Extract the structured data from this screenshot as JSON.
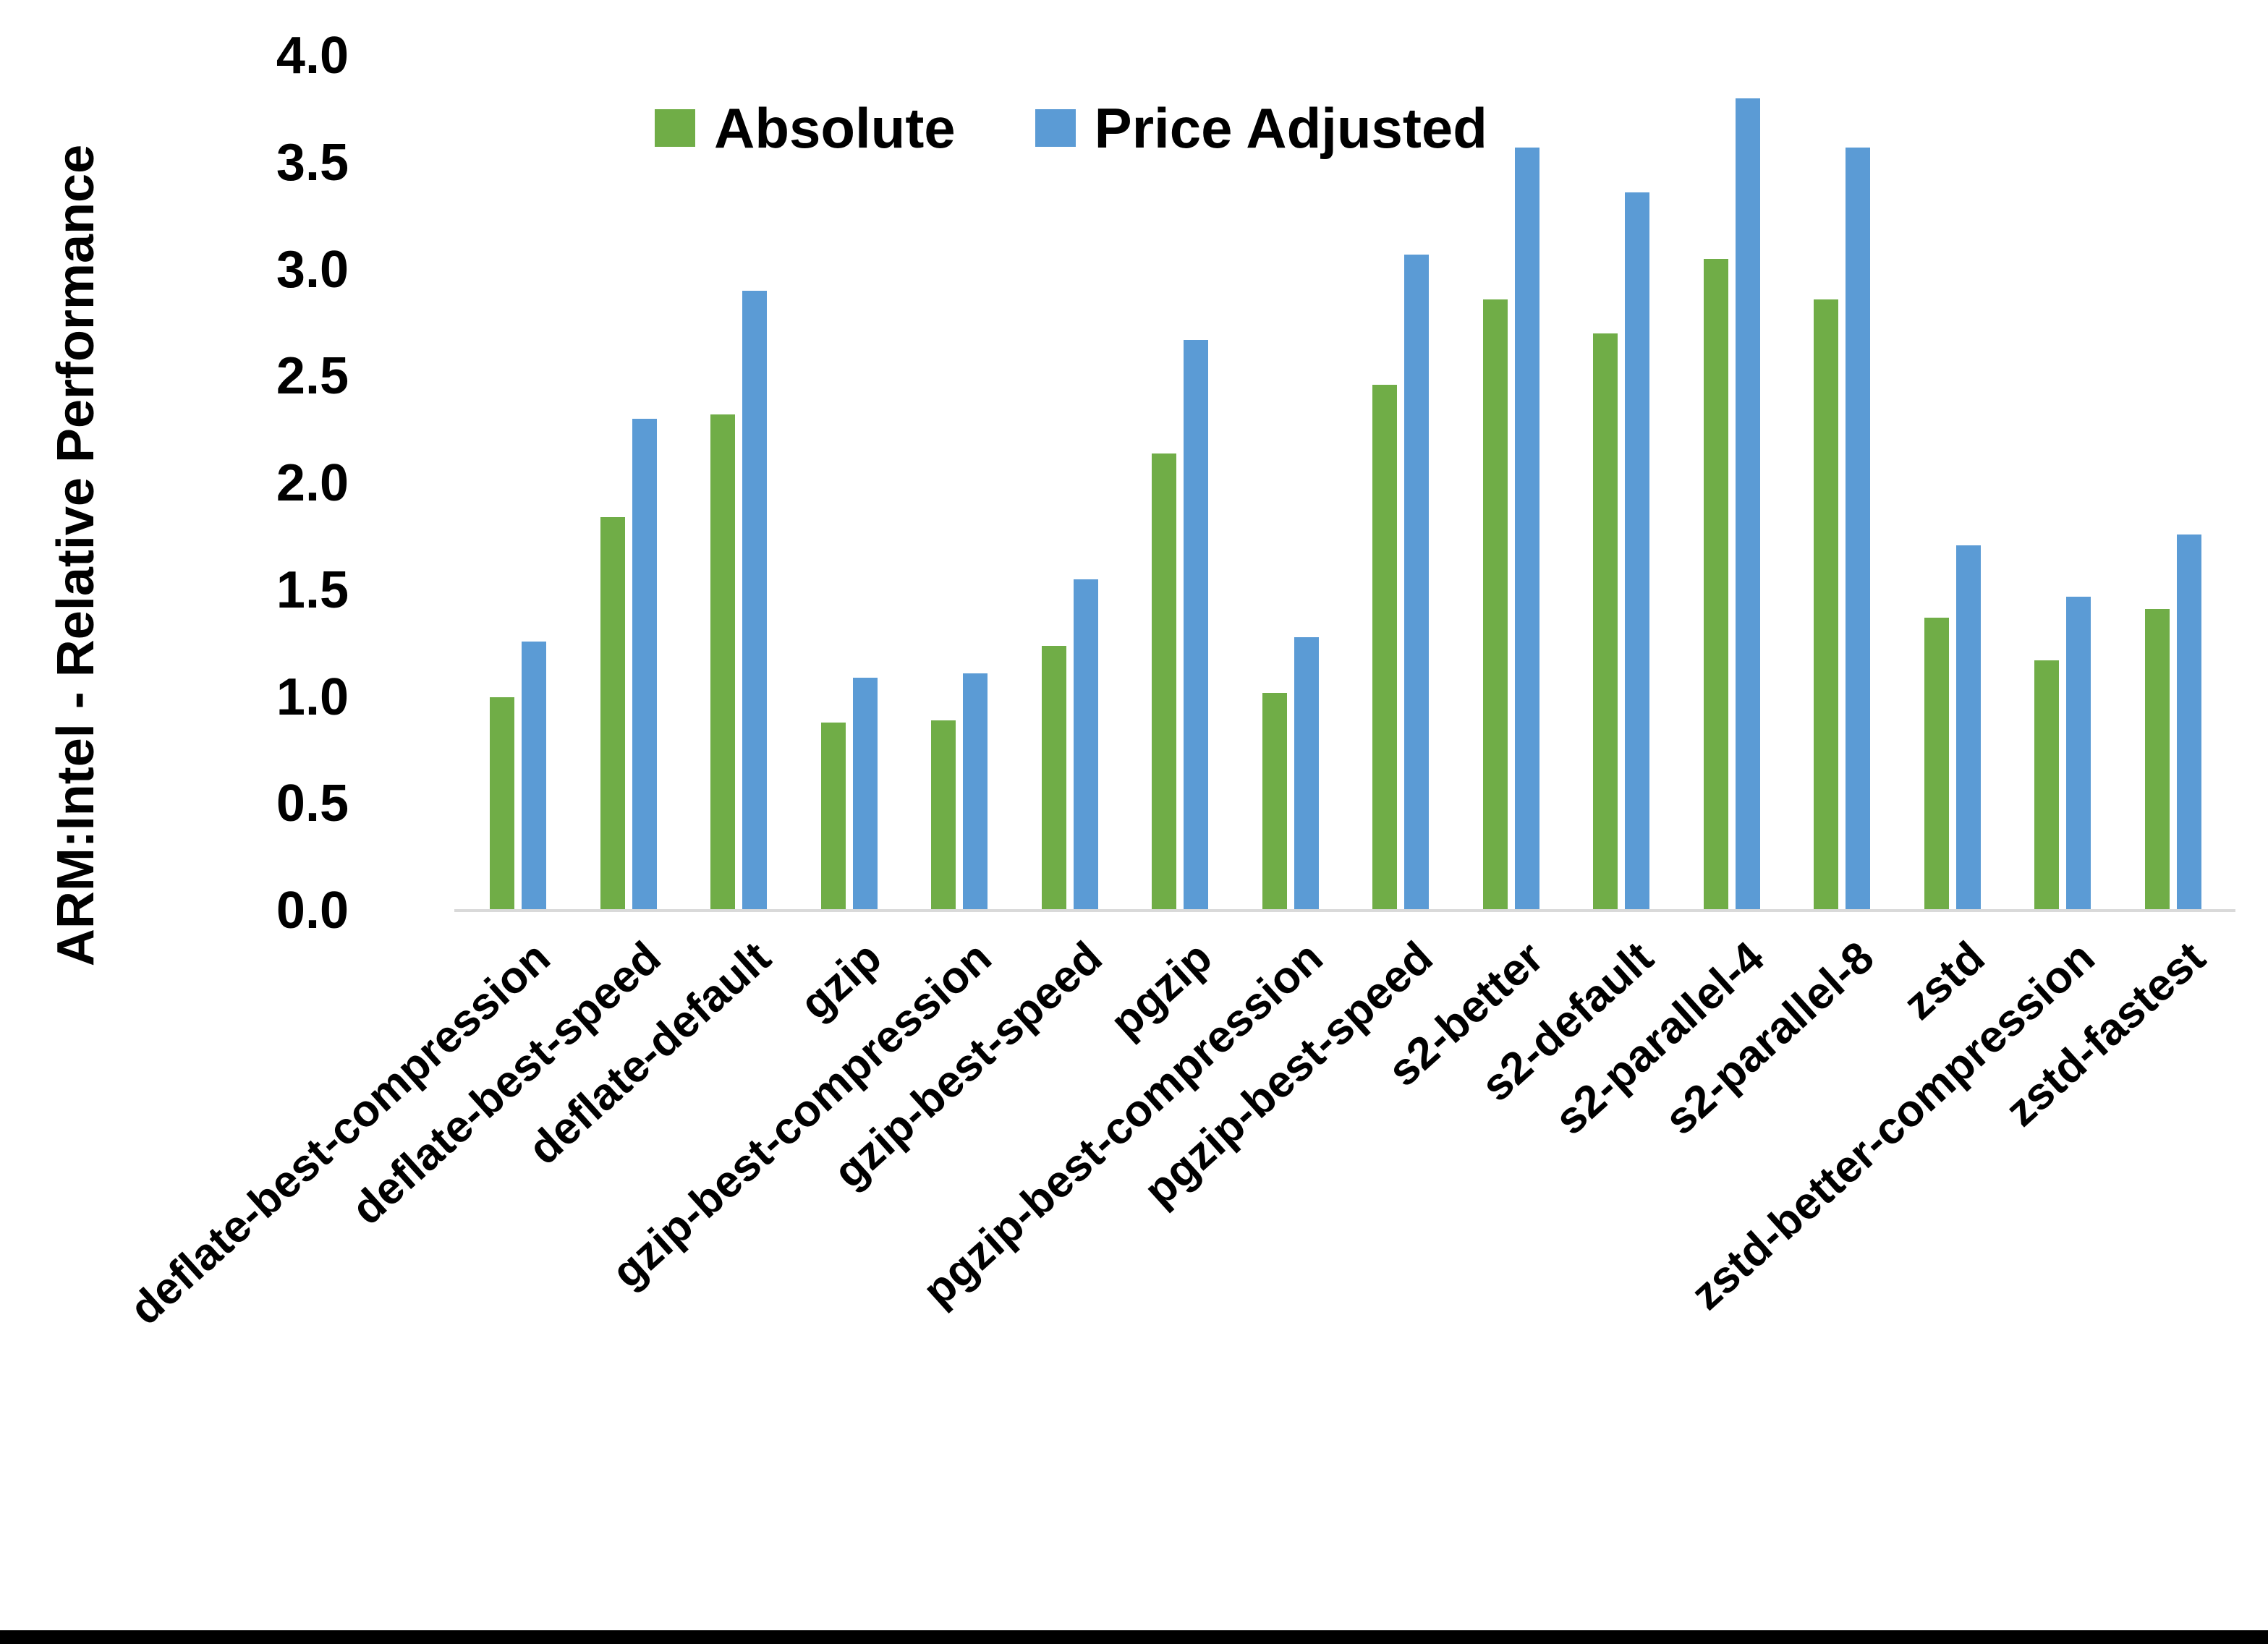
{
  "chart_data": {
    "type": "bar",
    "title": "",
    "xlabel": "",
    "ylabel": "ARM:Intel - Relative Performance",
    "ylim": [
      0.0,
      4.0
    ],
    "ytick_step": 0.5,
    "yticks": [
      "0.0",
      "0.5",
      "1.0",
      "1.5",
      "2.0",
      "2.5",
      "3.0",
      "3.5",
      "4.0"
    ],
    "grid": false,
    "legend_position": "top-center",
    "categories": [
      "deflate-best-compression",
      "deflate-best-speed",
      "deflate-default",
      "gzip",
      "gzip-best-compression",
      "gzip-best-speed",
      "pgzip",
      "pgzip-best-compression",
      "pgzip-best-speed",
      "s2-better",
      "s2-default",
      "s2-parallel-4",
      "s2-parallel-8",
      "zstd",
      "zstd-better-compression",
      "zstd-fastest"
    ],
    "series": [
      {
        "name": "Absolute",
        "color": "#70AD47",
        "values": [
          1.0,
          1.84,
          2.32,
          0.88,
          0.89,
          1.24,
          2.14,
          1.02,
          2.46,
          2.86,
          2.7,
          3.05,
          2.86,
          1.37,
          1.17,
          1.41
        ]
      },
      {
        "name": "Price Adjusted",
        "color": "#5B9BD5",
        "values": [
          1.26,
          2.3,
          2.9,
          1.09,
          1.11,
          1.55,
          2.67,
          1.28,
          3.07,
          3.57,
          3.36,
          3.8,
          3.57,
          1.71,
          1.47,
          1.76
        ]
      }
    ]
  },
  "colors": {
    "axis_line": "#D9D9D9",
    "text": "#000000",
    "background": "#FFFFFF",
    "bottom_bar": "#000000"
  }
}
